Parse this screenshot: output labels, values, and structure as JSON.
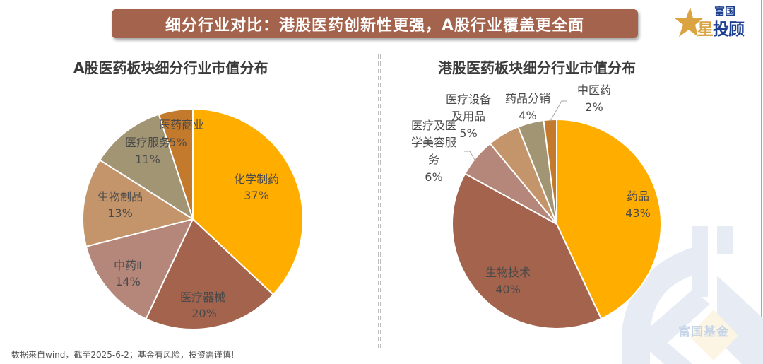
{
  "banner": {
    "title": "细分行业对比：港股医药创新性更强，A股行业覆盖更全面"
  },
  "logo": {
    "top": "富国",
    "main_gold": "星",
    "main_blue": "投顾"
  },
  "watermark": {
    "text": "富国基金"
  },
  "footnote": "数据来自wind，截至2025-6-2；基金有风险，投资需谨慎!",
  "colors": {
    "banner": "#a3634c",
    "orange": "#ffae00",
    "brown": "#a3634c",
    "rose": "#b5877b",
    "tan": "#c4956a",
    "khaki": "#a29574",
    "copper": "#c47a2c"
  },
  "chart_data": [
    {
      "type": "pie",
      "title": "A股医药板块细分行业市值分布",
      "unit": "%",
      "start": "top",
      "direction": "clockwise",
      "slices": [
        {
          "name": "化学制药",
          "value": 37,
          "label": "37%",
          "color": "#ffae00"
        },
        {
          "name": "医疗器械",
          "value": 20,
          "label": "20%",
          "color": "#a3634c"
        },
        {
          "name": "中药Ⅱ",
          "value": 14,
          "label": "14%",
          "color": "#b5877b"
        },
        {
          "name": "生物制品",
          "value": 13,
          "label": "13%",
          "color": "#c4956a"
        },
        {
          "name": "医疗服务",
          "value": 11,
          "label": "11%",
          "color": "#a29574"
        },
        {
          "name": "医药商业",
          "value": 5,
          "label": "5%",
          "color": "#c47a2c"
        }
      ]
    },
    {
      "type": "pie",
      "title": "港股医药板块细分行业市值分布",
      "unit": "%",
      "start": "top",
      "direction": "clockwise",
      "slices": [
        {
          "name": "药品",
          "value": 43,
          "label": "43%",
          "color": "#ffae00"
        },
        {
          "name": "生物技术",
          "value": 40,
          "label": "40%",
          "color": "#a3634c"
        },
        {
          "name": "医疗及医学美容服务",
          "value": 6,
          "label": "6%",
          "color": "#b5877b"
        },
        {
          "name": "医疗设备及用品",
          "value": 5,
          "label": "5%",
          "color": "#c4956a"
        },
        {
          "name": "药品分销",
          "value": 4,
          "label": "4%",
          "color": "#a29574"
        },
        {
          "name": "中医药",
          "value": 2,
          "label": "2%",
          "color": "#c47a2c"
        }
      ]
    }
  ]
}
